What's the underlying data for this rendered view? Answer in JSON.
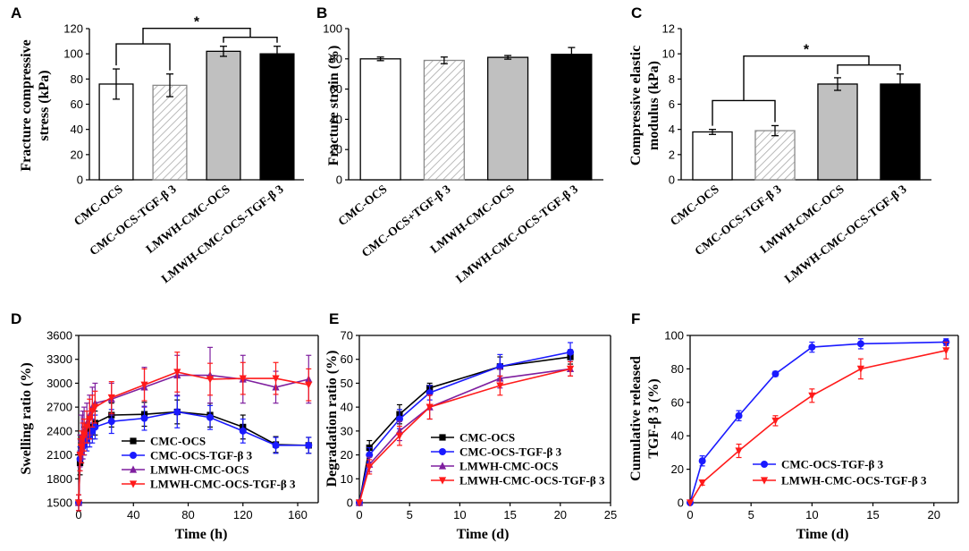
{
  "colors": {
    "white": "#ffffff",
    "grey": "#c0c0c0",
    "black": "#000000",
    "blue": "#1a1aff",
    "purple": "#7f1f9f",
    "red": "#ff1a1a"
  },
  "chart_data": [
    {
      "panel": "A",
      "type": "bar",
      "ylabel_line1": "Fracture compressive",
      "ylabel_line2": "stress (kPa)",
      "ylim": [
        0,
        120
      ],
      "yticks": [
        0,
        20,
        40,
        60,
        80,
        100,
        120
      ],
      "categories": [
        "CMC-OCS",
        "CMC-OCS-TGF-β 3",
        "LMWH-CMC-OCS",
        "LMWH-CMC-OCS-TGF-β 3"
      ],
      "values": [
        76,
        75,
        102,
        100
      ],
      "errors": [
        12,
        9,
        4,
        6
      ],
      "fills": [
        "white",
        "hatch",
        "grey",
        "black"
      ],
      "significance": "*"
    },
    {
      "panel": "B",
      "type": "bar",
      "ylabel": "Fracture strain (%)",
      "ylim": [
        0,
        100
      ],
      "yticks": [
        0,
        20,
        40,
        60,
        80,
        100
      ],
      "categories": [
        "CMC-OCS",
        "CMC-OCS+TGF-β 3",
        "LMWH-CMC-OCS",
        "LMWH-CMC-OCS-TGF-β 3"
      ],
      "values": [
        80,
        79,
        81,
        83
      ],
      "errors": [
        1.2,
        2.2,
        1.2,
        4.5
      ],
      "fills": [
        "white",
        "hatch",
        "grey",
        "black"
      ]
    },
    {
      "panel": "C",
      "type": "bar",
      "ylabel_line1": "Compressive elastic",
      "ylabel_line2": "modulus (kPa)",
      "ylim": [
        0,
        12
      ],
      "yticks": [
        0,
        2,
        4,
        6,
        8,
        10,
        12
      ],
      "categories": [
        "CMC-OCS",
        "CMC-OCS-TGF-β 3",
        "LMWH-CMC-OCS",
        "LMWH-CMC-OCS-TGF-β 3"
      ],
      "values": [
        3.8,
        3.9,
        7.6,
        7.6
      ],
      "errors": [
        0.2,
        0.4,
        0.5,
        0.8
      ],
      "fills": [
        "white",
        "hatch",
        "grey",
        "black"
      ],
      "significance": "*"
    },
    {
      "panel": "D",
      "type": "line",
      "xlabel": "Time (h)",
      "ylabel": "Swelling ratio (%)",
      "xlim": [
        0,
        175
      ],
      "ylim": [
        1500,
        3600
      ],
      "xticks": [
        0,
        40,
        80,
        120,
        160
      ],
      "yticks": [
        1500,
        1800,
        2100,
        2400,
        2700,
        3000,
        3300,
        3600
      ],
      "series": [
        {
          "name": "CMC-OCS",
          "color": "black",
          "marker": "square",
          "x": [
            0,
            1,
            2,
            3,
            4,
            6,
            8,
            10,
            12,
            24,
            48,
            72,
            96,
            120,
            144,
            168
          ],
          "y": [
            1500,
            2000,
            2150,
            2250,
            2300,
            2350,
            2400,
            2450,
            2500,
            2600,
            2610,
            2640,
            2600,
            2450,
            2230,
            2220
          ],
          "err": [
            100,
            150,
            150,
            150,
            150,
            150,
            150,
            150,
            150,
            150,
            150,
            150,
            150,
            150,
            100,
            100
          ]
        },
        {
          "name": "CMC-OCS-TGF-β 3",
          "color": "blue",
          "marker": "circle",
          "x": [
            0,
            1,
            2,
            3,
            4,
            6,
            8,
            10,
            12,
            24,
            48,
            72,
            96,
            120,
            144,
            168
          ],
          "y": [
            1500,
            2050,
            2150,
            2200,
            2250,
            2300,
            2350,
            2400,
            2450,
            2520,
            2560,
            2640,
            2570,
            2400,
            2220,
            2220
          ],
          "err": [
            100,
            150,
            150,
            150,
            150,
            150,
            150,
            150,
            150,
            150,
            150,
            200,
            150,
            150,
            100,
            100
          ]
        },
        {
          "name": "LMWH-CMC-OCS",
          "color": "purple",
          "marker": "triangle",
          "x": [
            0,
            1,
            2,
            3,
            4,
            6,
            8,
            10,
            12,
            24,
            48,
            72,
            96,
            120,
            144,
            168
          ],
          "y": [
            1500,
            2150,
            2300,
            2350,
            2400,
            2500,
            2600,
            2700,
            2750,
            2800,
            2950,
            3100,
            3100,
            3050,
            2950,
            3050
          ],
          "err": [
            100,
            200,
            300,
            300,
            300,
            250,
            250,
            250,
            250,
            200,
            250,
            250,
            350,
            300,
            200,
            300
          ]
        },
        {
          "name": "LMWH-CMC-OCS-TGF-β 3",
          "color": "red",
          "marker": "triangle-down",
          "x": [
            0,
            1,
            2,
            3,
            4,
            6,
            8,
            10,
            12,
            24,
            48,
            72,
            96,
            120,
            144,
            168
          ],
          "y": [
            1500,
            2100,
            2200,
            2300,
            2350,
            2450,
            2550,
            2650,
            2700,
            2820,
            2980,
            3140,
            3050,
            3060,
            3060,
            2980
          ],
          "err": [
            100,
            200,
            200,
            200,
            200,
            200,
            250,
            200,
            200,
            200,
            200,
            250,
            200,
            200,
            200,
            200
          ]
        }
      ]
    },
    {
      "panel": "E",
      "type": "line",
      "xlabel": "Time (d)",
      "ylabel": "Degradation ratio (%)",
      "xlim": [
        0,
        25
      ],
      "ylim": [
        0,
        70
      ],
      "xticks": [
        0,
        5,
        10,
        15,
        20,
        25
      ],
      "yticks": [
        0,
        10,
        20,
        30,
        40,
        50,
        60,
        70
      ],
      "series": [
        {
          "name": "CMC-OCS",
          "color": "black",
          "marker": "square",
          "x": [
            0,
            1,
            4,
            7,
            14,
            21
          ],
          "y": [
            0,
            23,
            37,
            48,
            57,
            61
          ],
          "err": [
            0,
            3,
            4,
            2,
            4,
            3
          ]
        },
        {
          "name": "CMC-OCS-TGF-β 3",
          "color": "blue",
          "marker": "circle",
          "x": [
            0,
            1,
            4,
            7,
            14,
            21
          ],
          "y": [
            0,
            20,
            35,
            46,
            57,
            63
          ],
          "err": [
            0,
            3,
            4,
            3,
            5,
            4
          ]
        },
        {
          "name": "LMWH-CMC-OCS",
          "color": "purple",
          "marker": "triangle",
          "x": [
            0,
            1,
            4,
            7,
            14,
            21
          ],
          "y": [
            0,
            16,
            30,
            40,
            52,
            56
          ],
          "err": [
            0,
            3,
            4,
            5,
            4,
            3
          ]
        },
        {
          "name": "LMWH-CMC-OCS-TGF-β 3",
          "color": "red",
          "marker": "triangle-down",
          "x": [
            0,
            1,
            4,
            7,
            14,
            21
          ],
          "y": [
            0,
            15,
            28,
            40,
            49,
            56
          ],
          "err": [
            0,
            3,
            4,
            5,
            4,
            3
          ]
        }
      ]
    },
    {
      "panel": "F",
      "type": "line",
      "xlabel": "Time (d)",
      "ylabel_line1": "Cumulative released",
      "ylabel_line2": "TGF-β 3 (%)",
      "xlim": [
        0,
        22
      ],
      "ylim": [
        0,
        100
      ],
      "xticks": [
        0,
        5,
        10,
        15,
        20
      ],
      "yticks": [
        0,
        20,
        40,
        60,
        80,
        100
      ],
      "series": [
        {
          "name": "CMC-OCS-TGF-β 3",
          "color": "blue",
          "marker": "circle",
          "x": [
            0,
            1,
            4,
            7,
            10,
            14,
            21
          ],
          "y": [
            0,
            25,
            52,
            77,
            93,
            95,
            96
          ],
          "err": [
            0,
            3,
            3,
            1.5,
            3,
            3,
            2
          ]
        },
        {
          "name": "LMWH-CMC-OCS-TGF-β 3",
          "color": "red",
          "marker": "triangle-down",
          "x": [
            0,
            1,
            4,
            7,
            10,
            14,
            21
          ],
          "y": [
            0,
            12,
            31,
            49,
            64,
            80,
            91
          ],
          "err": [
            0,
            1.5,
            4,
            3,
            4,
            6,
            5
          ]
        }
      ]
    }
  ]
}
